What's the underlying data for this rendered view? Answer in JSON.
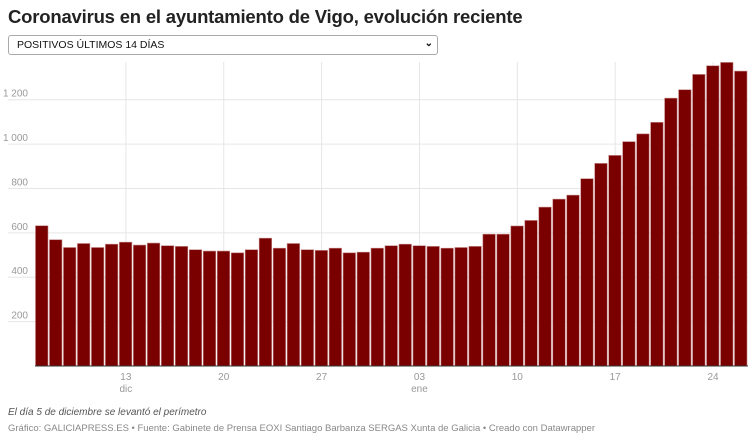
{
  "header": {
    "title": "Coronavirus en el ayuntamiento de Vigo, evolución reciente"
  },
  "selector": {
    "value": "POSITIVOS ÚLTIMOS 14 DÍAS",
    "icon": "chevron-down-icon"
  },
  "footer": {
    "note": "El día 5 de diciembre se levantó el perímetro",
    "source": "Gráfico: GALICIAPRESS.ES • Fuente: Gabinete de Prensa EOXI Santiago Barbanza SERGAS Xunta de Galicia • Creado con Datawrapper"
  },
  "chart_data": {
    "type": "bar",
    "title": "Coronavirus en el ayuntamiento de Vigo, evolución reciente",
    "xlabel": "",
    "ylabel": "",
    "ylim": [
      0,
      1370
    ],
    "grid": true,
    "colors": {
      "bar": "#7a0000",
      "bar_stroke": "#c08080",
      "grid": "#e6e6e6",
      "tick": "#999999"
    },
    "x_start": "2020-12-07",
    "x_end": "2021-01-26",
    "y_ticks": [
      {
        "value": 200,
        "label": "200"
      },
      {
        "value": 400,
        "label": "400"
      },
      {
        "value": 600,
        "label": "600"
      },
      {
        "value": 800,
        "label": "800"
      },
      {
        "value": 1000,
        "label": "1 000"
      },
      {
        "value": 1200,
        "label": "1 200"
      }
    ],
    "x_ticks": [
      {
        "date": "2020-12-13",
        "label": "13",
        "sub": "dic"
      },
      {
        "date": "2020-12-20",
        "label": "20",
        "sub": ""
      },
      {
        "date": "2020-12-27",
        "label": "27",
        "sub": ""
      },
      {
        "date": "2021-01-03",
        "label": "03",
        "sub": "ene"
      },
      {
        "date": "2021-01-10",
        "label": "10",
        "sub": ""
      },
      {
        "date": "2021-01-17",
        "label": "17",
        "sub": ""
      },
      {
        "date": "2021-01-24",
        "label": "24",
        "sub": ""
      }
    ],
    "values": [
      632,
      569,
      534,
      552,
      534,
      549,
      558,
      545,
      554,
      542,
      539,
      524,
      518,
      518,
      510,
      524,
      576,
      531,
      552,
      524,
      521,
      531,
      510,
      513,
      531,
      542,
      549,
      542,
      539,
      531,
      534,
      539,
      594,
      594,
      631,
      656,
      716,
      752,
      770,
      844,
      913,
      949,
      1011,
      1046,
      1098,
      1207,
      1245,
      1314,
      1353,
      1368,
      1329
    ]
  }
}
